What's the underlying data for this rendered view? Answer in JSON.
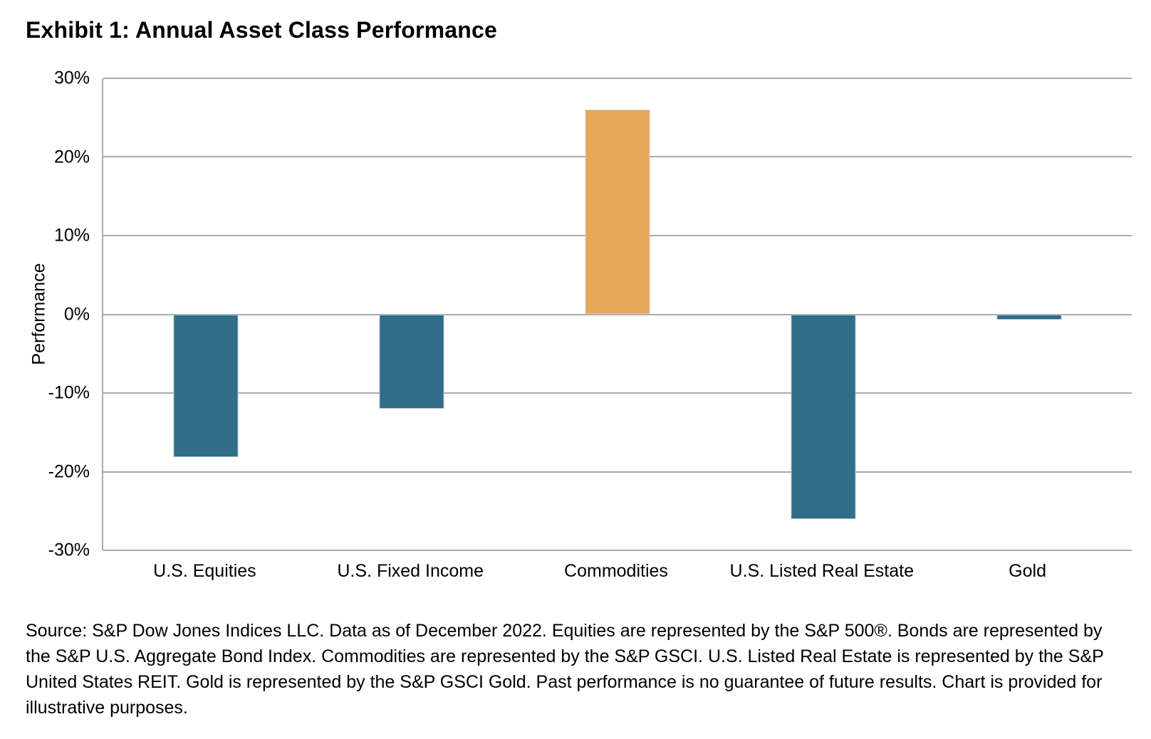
{
  "chart_data": {
    "type": "bar",
    "title": "Exhibit 1: Annual Asset Class Performance",
    "ylabel": "Performance",
    "xlabel": "",
    "categories": [
      "U.S. Equities",
      "U.S. Fixed Income",
      "Commodities",
      "U.S. Listed Real Estate",
      "Gold"
    ],
    "values": [
      -18.1,
      -12,
      26,
      -26,
      -0.7
    ],
    "ylim": [
      -30,
      30
    ],
    "yticks": [
      30,
      20,
      10,
      0,
      -10,
      -20,
      -30
    ],
    "ytick_labels": [
      "30%",
      "20%",
      "10%",
      "0%",
      "-10%",
      "-20%",
      "-30%"
    ],
    "grid": "horizontal",
    "legend": "none",
    "bar_colors": [
      "#2F6D88",
      "#2F6D88",
      "#E6A75A",
      "#2F6D88",
      "#2F6D88"
    ],
    "colors": {
      "negative_bar_teal": "#2F6D88",
      "positive_bar_orange": "#E6A75A",
      "gridline_gray": "#ABABAB",
      "text_black": "#000000"
    }
  },
  "source": {
    "text": "Source: S&P Dow Jones Indices LLC. Data as of December 2022. Equities are represented by the S&P 500®. Bonds are represented by the S&P U.S. Aggregate Bond Index. Commodities are represented by the S&P GSCI. U.S. Listed Real Estate is represented by the S&P United States REIT. Gold is represented by the S&P GSCI Gold. Past performance is no guarantee of future results. Chart is provided for illustrative purposes."
  }
}
